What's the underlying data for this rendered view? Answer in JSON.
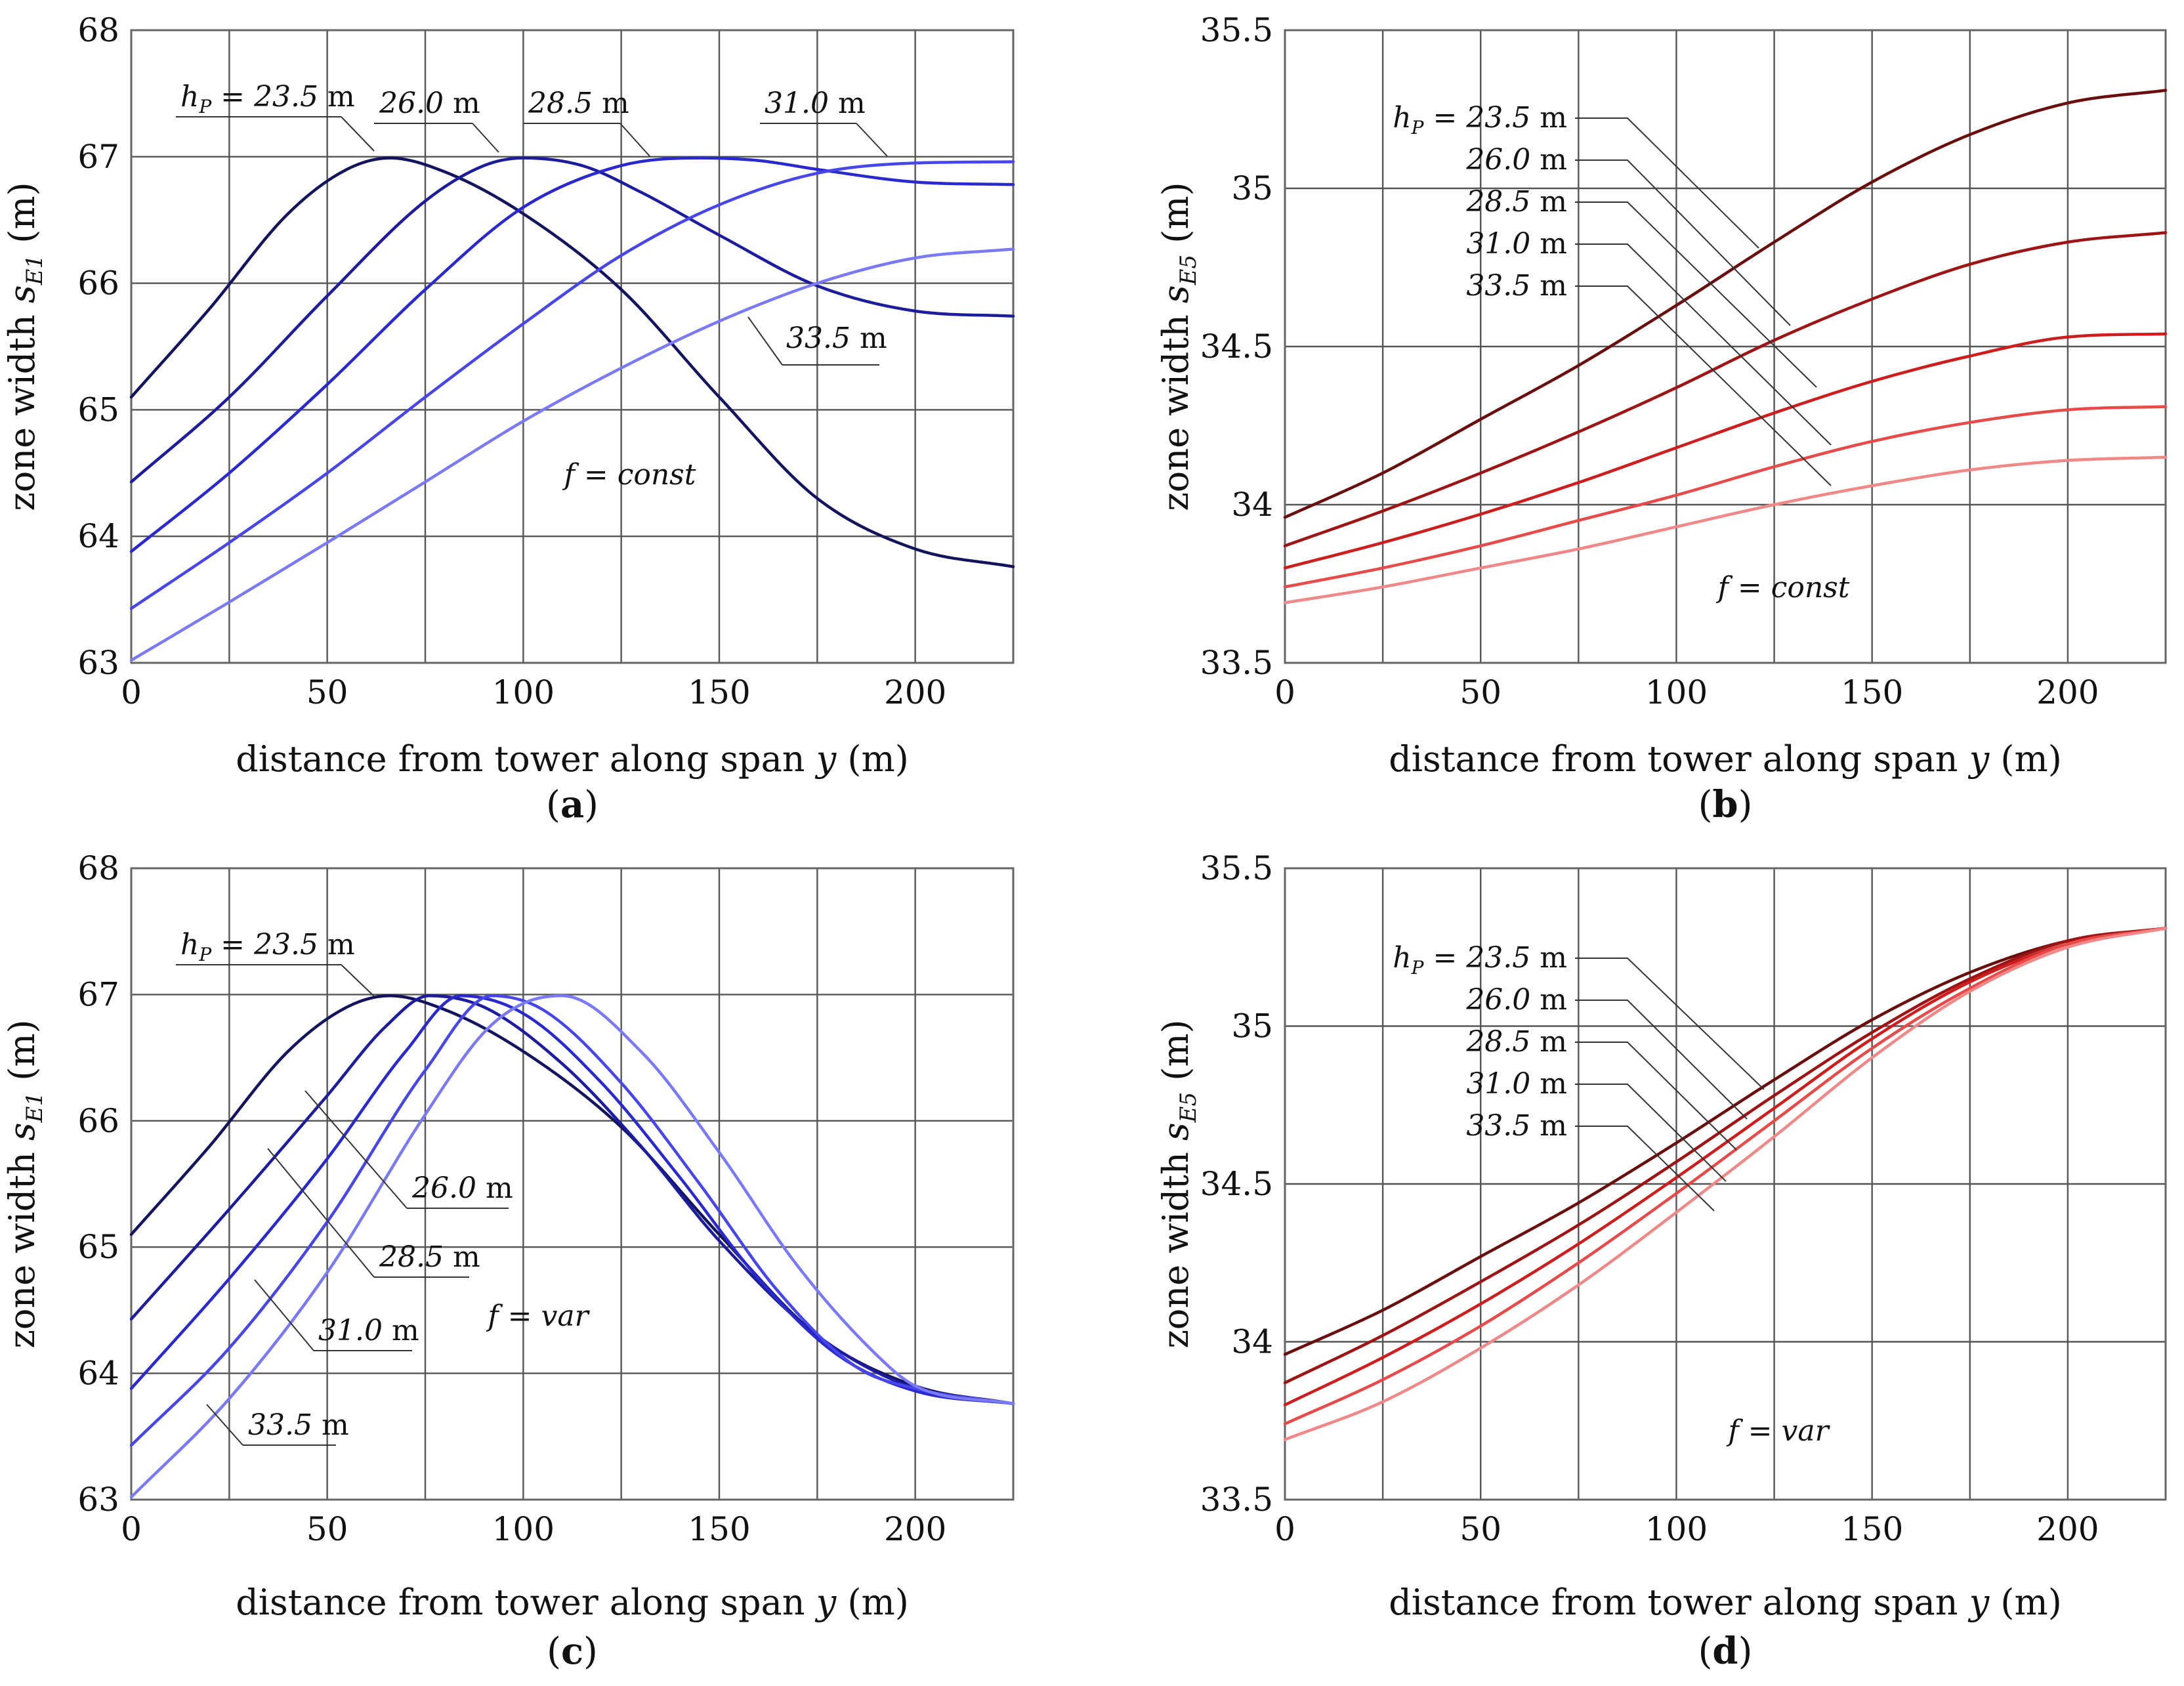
{
  "chart_data": [
    {
      "id": "a",
      "type": "line",
      "panel_label": "a",
      "xlabel": "distance from tower along span y (m)",
      "ylabel": "zone width s_E1 (m)",
      "xlim": [
        0,
        225
      ],
      "ylim": [
        63,
        68
      ],
      "xticks": [
        0,
        50,
        100,
        150,
        200
      ],
      "xgrid": [
        25,
        50,
        75,
        100,
        125,
        150,
        175,
        200
      ],
      "yticks": [
        63,
        64,
        65,
        66,
        67,
        68
      ],
      "ytick_labels": [
        "63",
        "64",
        "65",
        "66",
        "67",
        "68"
      ],
      "annotation": "f = const",
      "series": [
        {
          "name": "h_P = 23.5 m",
          "color": "#14145e",
          "x": [
            0,
            20,
            40,
            55,
            66,
            80,
            100,
            125,
            150,
            175,
            200,
            225
          ],
          "values": [
            65.1,
            65.8,
            66.55,
            66.9,
            66.99,
            66.88,
            66.55,
            65.95,
            65.1,
            64.3,
            63.9,
            63.76
          ]
        },
        {
          "name": "26.0 m",
          "color": "#1c1c9e",
          "x": [
            0,
            25,
            50,
            75,
            90,
            100,
            115,
            130,
            150,
            175,
            200,
            225
          ],
          "values": [
            64.43,
            65.1,
            65.9,
            66.65,
            66.93,
            66.99,
            66.93,
            66.72,
            66.38,
            65.98,
            65.78,
            65.74
          ]
        },
        {
          "name": "28.5 m",
          "color": "#2929cf",
          "x": [
            0,
            25,
            50,
            75,
            100,
            125,
            145,
            160,
            175,
            200,
            225
          ],
          "values": [
            63.88,
            64.5,
            65.2,
            65.95,
            66.6,
            66.93,
            66.99,
            66.97,
            66.9,
            66.8,
            66.78
          ]
        },
        {
          "name": "31.0 m",
          "color": "#4646ec",
          "x": [
            0,
            25,
            50,
            75,
            100,
            125,
            150,
            175,
            200,
            225
          ],
          "values": [
            63.43,
            63.95,
            64.5,
            65.1,
            65.68,
            66.22,
            66.62,
            66.87,
            66.95,
            66.96
          ]
        },
        {
          "name": "33.5 m",
          "color": "#7a7af8",
          "x": [
            0,
            25,
            50,
            75,
            100,
            125,
            150,
            175,
            200,
            225
          ],
          "values": [
            63.02,
            63.48,
            63.95,
            64.43,
            64.91,
            65.33,
            65.7,
            66.0,
            66.2,
            66.27
          ]
        }
      ],
      "labels": {
        "h0": "h",
        "h0_sub": "P",
        "h0_rest": " = 23.5",
        "h0_unit": "m",
        "l1": "26.0",
        "l2": "28.5",
        "l3": "31.0",
        "l4": "33.5",
        "unit": "m"
      }
    },
    {
      "id": "b",
      "type": "line",
      "panel_label": "b",
      "xlabel": "distance from tower along span y (m)",
      "ylabel": "zone width s_E5 (m)",
      "xlim": [
        0,
        225
      ],
      "ylim": [
        33.5,
        35.5
      ],
      "xticks": [
        0,
        50,
        100,
        150,
        200
      ],
      "xgrid": [
        25,
        50,
        75,
        100,
        125,
        150,
        175,
        200
      ],
      "yticks": [
        33.5,
        34,
        34.5,
        35,
        35.5
      ],
      "ytick_labels": [
        "33.5",
        "34",
        "34.5",
        "35",
        "35.5"
      ],
      "annotation": "f = const",
      "series": [
        {
          "name": "h_P = 23.5 m",
          "color": "#6a0d0d",
          "x": [
            0,
            25,
            50,
            75,
            100,
            125,
            150,
            175,
            200,
            225
          ],
          "values": [
            33.96,
            34.1,
            34.27,
            34.44,
            34.63,
            34.83,
            35.02,
            35.17,
            35.27,
            35.31
          ]
        },
        {
          "name": "26.0 m",
          "color": "#9e1414",
          "x": [
            0,
            25,
            50,
            75,
            100,
            125,
            150,
            175,
            200,
            225
          ],
          "values": [
            33.87,
            33.98,
            34.1,
            34.23,
            34.37,
            34.52,
            34.65,
            34.76,
            34.83,
            34.86
          ]
        },
        {
          "name": "28.5 m",
          "color": "#cf1d1d",
          "x": [
            0,
            25,
            50,
            75,
            100,
            125,
            150,
            175,
            200,
            225
          ],
          "values": [
            33.8,
            33.88,
            33.97,
            34.07,
            34.18,
            34.29,
            34.39,
            34.47,
            34.53,
            34.54
          ]
        },
        {
          "name": "31.0 m",
          "color": "#e84a4a",
          "x": [
            0,
            25,
            50,
            75,
            100,
            125,
            150,
            175,
            200,
            225
          ],
          "values": [
            33.74,
            33.8,
            33.87,
            33.95,
            34.03,
            34.12,
            34.2,
            34.26,
            34.3,
            34.31
          ]
        },
        {
          "name": "33.5 m",
          "color": "#f08888",
          "x": [
            0,
            25,
            50,
            75,
            100,
            125,
            150,
            175,
            200,
            225
          ],
          "values": [
            33.69,
            33.74,
            33.8,
            33.86,
            33.93,
            34.0,
            34.06,
            34.11,
            34.14,
            34.15
          ]
        }
      ],
      "labels": {
        "h0": "h",
        "h0_sub": "P",
        "h0_rest": " = 23.5",
        "h0_unit": "m",
        "l1": "26.0",
        "l2": "28.5",
        "l3": "31.0",
        "l4": "33.5",
        "unit": "m"
      }
    },
    {
      "id": "c",
      "type": "line",
      "panel_label": "c",
      "xlabel": "distance from tower along span y (m)",
      "ylabel": "zone width s_E1 (m)",
      "xlim": [
        0,
        225
      ],
      "ylim": [
        63,
        68
      ],
      "xticks": [
        0,
        50,
        100,
        150,
        200
      ],
      "xgrid": [
        25,
        50,
        75,
        100,
        125,
        150,
        175,
        200
      ],
      "yticks": [
        63,
        64,
        65,
        66,
        67,
        68
      ],
      "ytick_labels": [
        "63",
        "64",
        "65",
        "66",
        "67",
        "68"
      ],
      "annotation": "f = var",
      "series": [
        {
          "name": "h_P = 23.5 m",
          "color": "#14145e",
          "x": [
            0,
            20,
            40,
            55,
            66,
            80,
            100,
            125,
            150,
            175,
            200,
            225
          ],
          "values": [
            65.1,
            65.8,
            66.55,
            66.9,
            66.99,
            66.88,
            66.55,
            65.95,
            65.1,
            64.3,
            63.9,
            63.76
          ]
        },
        {
          "name": "26.0 m",
          "color": "#1c1c9e",
          "x": [
            0,
            25,
            50,
            65,
            76,
            90,
            110,
            130,
            150,
            175,
            200,
            225
          ],
          "values": [
            64.43,
            65.3,
            66.2,
            66.75,
            66.99,
            66.9,
            66.45,
            65.8,
            65.05,
            64.3,
            63.88,
            63.76
          ]
        },
        {
          "name": "28.5 m",
          "color": "#2929cf",
          "x": [
            0,
            25,
            50,
            70,
            84,
            100,
            120,
            140,
            160,
            180,
            200,
            225
          ],
          "values": [
            63.88,
            64.75,
            65.7,
            66.55,
            66.99,
            66.85,
            66.3,
            65.55,
            64.75,
            64.15,
            63.86,
            63.76
          ]
        },
        {
          "name": "31.0 m",
          "color": "#4646ec",
          "x": [
            0,
            25,
            50,
            75,
            92,
            105,
            125,
            145,
            165,
            185,
            200,
            225
          ],
          "values": [
            63.43,
            64.2,
            65.2,
            66.4,
            66.99,
            66.88,
            66.3,
            65.5,
            64.65,
            64.05,
            63.88,
            63.76
          ]
        },
        {
          "name": "33.5 m",
          "color": "#7a7af8",
          "x": [
            0,
            25,
            50,
            75,
            90,
            100,
            110,
            130,
            150,
            170,
            190,
            200,
            225
          ],
          "values": [
            63.02,
            63.8,
            64.8,
            66.05,
            66.7,
            66.93,
            66.99,
            66.55,
            65.75,
            64.85,
            64.15,
            63.9,
            63.76
          ]
        }
      ],
      "labels": {
        "h0": "h",
        "h0_sub": "P",
        "h0_rest": " = 23.5",
        "h0_unit": "m",
        "l1": "26.0",
        "l2": "28.5",
        "l3": "31.0",
        "l4": "33.5",
        "unit": "m"
      }
    },
    {
      "id": "d",
      "type": "line",
      "panel_label": "d",
      "xlabel": "distance from tower along span y (m)",
      "ylabel": "zone width s_E5 (m)",
      "xlim": [
        0,
        225
      ],
      "ylim": [
        33.5,
        35.5
      ],
      "xticks": [
        0,
        50,
        100,
        150,
        200
      ],
      "xgrid": [
        25,
        50,
        75,
        100,
        125,
        150,
        175,
        200
      ],
      "yticks": [
        33.5,
        34,
        34.5,
        35,
        35.5
      ],
      "ytick_labels": [
        "33.5",
        "34",
        "34.5",
        "35",
        "35.5"
      ],
      "annotation": "f = var",
      "series": [
        {
          "name": "h_P = 23.5 m",
          "color": "#6a0d0d",
          "x": [
            0,
            25,
            50,
            75,
            100,
            125,
            150,
            175,
            200,
            225
          ],
          "values": [
            33.96,
            34.1,
            34.27,
            34.44,
            34.63,
            34.83,
            35.02,
            35.17,
            35.27,
            35.31
          ]
        },
        {
          "name": "26.0 m",
          "color": "#9e1414",
          "x": [
            0,
            25,
            50,
            75,
            100,
            125,
            150,
            175,
            200,
            225
          ],
          "values": [
            33.87,
            34.02,
            34.19,
            34.37,
            34.57,
            34.78,
            34.98,
            35.15,
            35.27,
            35.31
          ]
        },
        {
          "name": "28.5 m",
          "color": "#cf1d1d",
          "x": [
            0,
            25,
            50,
            75,
            100,
            125,
            150,
            175,
            200,
            225
          ],
          "values": [
            33.8,
            33.95,
            34.12,
            34.31,
            34.52,
            34.74,
            34.96,
            35.14,
            35.26,
            35.31
          ]
        },
        {
          "name": "31.0 m",
          "color": "#e84a4a",
          "x": [
            0,
            25,
            50,
            75,
            100,
            125,
            150,
            175,
            200,
            225
          ],
          "values": [
            33.74,
            33.88,
            34.05,
            34.25,
            34.47,
            34.7,
            34.93,
            35.12,
            35.26,
            35.31
          ]
        },
        {
          "name": "33.5 m",
          "color": "#f08888",
          "x": [
            0,
            25,
            50,
            75,
            100,
            125,
            150,
            175,
            200,
            225
          ],
          "values": [
            33.69,
            33.81,
            33.98,
            34.18,
            34.41,
            34.65,
            34.9,
            35.11,
            35.25,
            35.31
          ]
        }
      ],
      "labels": {
        "h0": "h",
        "h0_sub": "P",
        "h0_rest": " = 23.5",
        "h0_unit": "m",
        "l1": "26.0",
        "l2": "28.5",
        "l3": "31.0",
        "l4": "33.5",
        "unit": "m"
      }
    }
  ]
}
